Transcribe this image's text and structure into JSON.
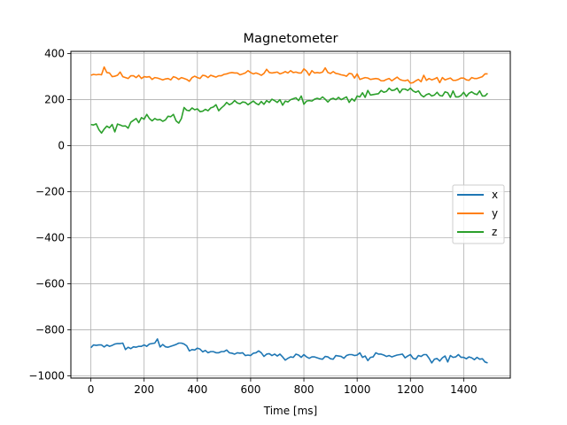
{
  "chart_data": {
    "type": "line",
    "title": "Magnetometer",
    "xlabel": "Time [ms]",
    "ylabel": "",
    "xlim": [
      -75,
      1575
    ],
    "ylim": [
      -1010,
      410
    ],
    "xticks": [
      0,
      200,
      400,
      600,
      800,
      1000,
      1200,
      1400
    ],
    "yticks": [
      -1000,
      -800,
      -600,
      -400,
      -200,
      0,
      200,
      400
    ],
    "grid": true,
    "legend_position": "center-right",
    "x": [
      0,
      10,
      20,
      30,
      40,
      50,
      60,
      70,
      80,
      90,
      100,
      110,
      120,
      130,
      140,
      150,
      160,
      170,
      180,
      190,
      200,
      210,
      220,
      230,
      240,
      250,
      260,
      270,
      280,
      290,
      300,
      310,
      320,
      330,
      340,
      350,
      360,
      370,
      380,
      390,
      400,
      410,
      420,
      430,
      440,
      450,
      460,
      470,
      480,
      490,
      500,
      510,
      520,
      530,
      540,
      550,
      560,
      570,
      580,
      590,
      600,
      610,
      620,
      630,
      640,
      650,
      660,
      670,
      680,
      690,
      700,
      710,
      720,
      730,
      740,
      750,
      760,
      770,
      780,
      790,
      800,
      810,
      820,
      830,
      840,
      850,
      860,
      870,
      880,
      890,
      900,
      910,
      920,
      930,
      940,
      950,
      960,
      970,
      980,
      990,
      1000,
      1010,
      1020,
      1030,
      1040,
      1050,
      1060,
      1070,
      1080,
      1090,
      1100,
      1110,
      1120,
      1130,
      1140,
      1150,
      1160,
      1170,
      1180,
      1190,
      1200,
      1210,
      1220,
      1230,
      1240,
      1250,
      1260,
      1270,
      1280,
      1290,
      1300,
      1310,
      1320,
      1330,
      1340,
      1350,
      1360,
      1370,
      1380,
      1390,
      1400,
      1410,
      1420,
      1430,
      1440,
      1450,
      1460,
      1470,
      1480,
      1490
    ],
    "series": [
      {
        "name": "x",
        "color": "#1f77b4",
        "values": [
          -878,
          -866,
          -868,
          -866,
          -866,
          -875,
          -866,
          -872,
          -868,
          -862,
          -860,
          -860,
          -858,
          -886,
          -876,
          -882,
          -874,
          -876,
          -872,
          -872,
          -866,
          -872,
          -862,
          -860,
          -858,
          -840,
          -875,
          -864,
          -874,
          -876,
          -872,
          -868,
          -864,
          -858,
          -858,
          -862,
          -870,
          -892,
          -886,
          -888,
          -880,
          -884,
          -896,
          -890,
          -900,
          -895,
          -895,
          -900,
          -900,
          -895,
          -895,
          -888,
          -900,
          -902,
          -906,
          -900,
          -902,
          -900,
          -912,
          -910,
          -912,
          -902,
          -900,
          -892,
          -900,
          -916,
          -906,
          -904,
          -912,
          -906,
          -914,
          -906,
          -918,
          -932,
          -924,
          -918,
          -920,
          -906,
          -910,
          -920,
          -908,
          -918,
          -924,
          -918,
          -918,
          -922,
          -926,
          -928,
          -916,
          -918,
          -926,
          -928,
          -912,
          -914,
          -916,
          -924,
          -912,
          -908,
          -908,
          -912,
          -910,
          -900,
          -920,
          -914,
          -934,
          -920,
          -918,
          -900,
          -906,
          -906,
          -910,
          -916,
          -912,
          -918,
          -914,
          -910,
          -908,
          -906,
          -922,
          -914,
          -908,
          -924,
          -928,
          -912,
          -916,
          -908,
          -908,
          -924,
          -944,
          -928,
          -925,
          -936,
          -922,
          -914,
          -940,
          -912,
          -920,
          -918,
          -908,
          -920,
          -920,
          -926,
          -918,
          -922,
          -930,
          -920,
          -928,
          -926,
          -940,
          -944
        ]
      },
      {
        "name": "y",
        "color": "#ff7f0e",
        "values": [
          306,
          310,
          308,
          310,
          308,
          342,
          318,
          316,
          300,
          302,
          306,
          320,
          300,
          296,
          292,
          304,
          304,
          296,
          306,
          292,
          300,
          298,
          300,
          288,
          296,
          294,
          290,
          286,
          290,
          292,
          286,
          300,
          296,
          288,
          296,
          292,
          288,
          280,
          296,
          302,
          296,
          292,
          306,
          304,
          296,
          306,
          302,
          298,
          304,
          304,
          310,
          312,
          316,
          318,
          316,
          316,
          308,
          312,
          316,
          326,
          318,
          312,
          316,
          312,
          306,
          314,
          332,
          318,
          316,
          318,
          320,
          312,
          316,
          322,
          316,
          326,
          318,
          320,
          316,
          316,
          334,
          324,
          306,
          326,
          316,
          318,
          316,
          320,
          338,
          318,
          314,
          322,
          314,
          312,
          308,
          306,
          302,
          314,
          312,
          294,
          312,
          288,
          292,
          296,
          294,
          288,
          290,
          292,
          290,
          282,
          282,
          288,
          292,
          282,
          290,
          298,
          288,
          284,
          282,
          286,
          272,
          274,
          282,
          288,
          278,
          306,
          284,
          292,
          286,
          290,
          296,
          274,
          296,
          286,
          290,
          294,
          284,
          284,
          288,
          294,
          294,
          286,
          284,
          296,
          292,
          292,
          296,
          300,
          312,
          312
        ]
      },
      {
        "name": "z",
        "color": "#2ca02c",
        "values": [
          92,
          90,
          95,
          70,
          55,
          72,
          85,
          78,
          92,
          60,
          94,
          90,
          85,
          86,
          76,
          102,
          110,
          118,
          100,
          122,
          115,
          136,
          118,
          108,
          118,
          112,
          114,
          106,
          112,
          128,
          126,
          136,
          108,
          98,
          118,
          166,
          154,
          152,
          164,
          156,
          160,
          148,
          150,
          158,
          152,
          164,
          168,
          178,
          152,
          164,
          174,
          188,
          178,
          184,
          196,
          186,
          182,
          190,
          188,
          178,
          186,
          194,
          184,
          178,
          192,
          180,
          196,
          188,
          202,
          196,
          188,
          200,
          176,
          194,
          190,
          200,
          204,
          208,
          196,
          216,
          180,
          194,
          196,
          194,
          202,
          206,
          202,
          212,
          202,
          190,
          202,
          206,
          200,
          210,
          200,
          206,
          212,
          188,
          204,
          194,
          216,
          212,
          230,
          210,
          240,
          220,
          222,
          224,
          226,
          240,
          232,
          236,
          250,
          240,
          242,
          250,
          230,
          246,
          246,
          240,
          250,
          238,
          232,
          238,
          220,
          212,
          222,
          226,
          216,
          220,
          232,
          218,
          216,
          234,
          230,
          210,
          238,
          212,
          212,
          218,
          232,
          214,
          228,
          234,
          226,
          222,
          238,
          216,
          216,
          228
        ]
      }
    ]
  }
}
